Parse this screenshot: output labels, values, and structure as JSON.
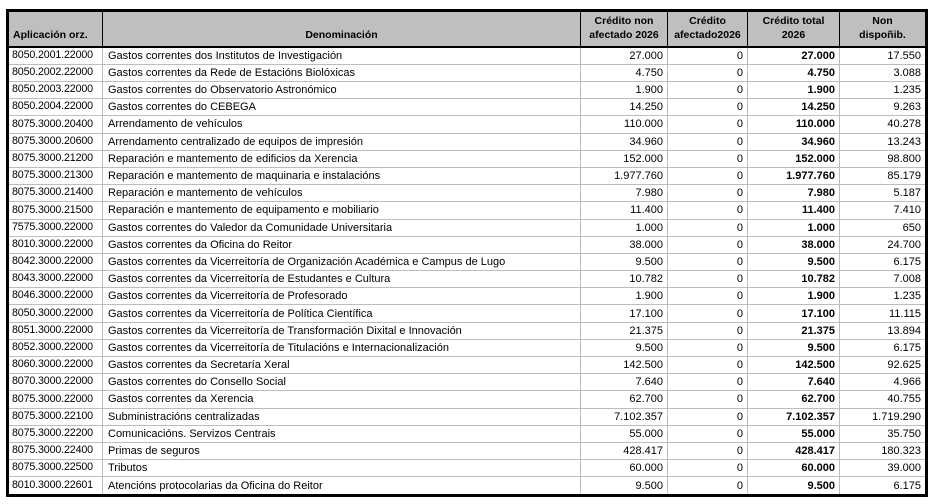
{
  "table": {
    "headers": [
      "Aplicación orz.",
      "Denominación",
      "Crédito non\nafectado 2026",
      "Crédito\nafectado2026",
      "Crédito total\n2026",
      "Non\ndispoñib."
    ],
    "rows": [
      [
        "8050.2001.22000",
        "Gastos correntes dos Institutos de Investigación",
        "27.000",
        "0",
        "27.000",
        "17.550"
      ],
      [
        "8050.2002.22000",
        "Gastos correntes da Rede de Estacións Biolóxicas",
        "4.750",
        "0",
        "4.750",
        "3.088"
      ],
      [
        "8050.2003.22000",
        "Gastos correntes do Observatorio Astronómico",
        "1.900",
        "0",
        "1.900",
        "1.235"
      ],
      [
        "8050.2004.22000",
        "Gastos correntes do CEBEGA",
        "14.250",
        "0",
        "14.250",
        "9.263"
      ],
      [
        "8075.3000.20400",
        "Arrendamento de vehículos",
        "110.000",
        "0",
        "110.000",
        "40.278"
      ],
      [
        "8075.3000.20600",
        "Arrendamento centralizado de equipos de impresión",
        "34.960",
        "0",
        "34.960",
        "13.243"
      ],
      [
        "8075.3000.21200",
        "Reparación e mantemento de edificios da Xerencia",
        "152.000",
        "0",
        "152.000",
        "98.800"
      ],
      [
        "8075.3000.21300",
        "Reparación e mantemento de maquinaria e instalacións",
        "1.977.760",
        "0",
        "1.977.760",
        "85.179"
      ],
      [
        "8075.3000.21400",
        "Reparación e mantemento de vehículos",
        "7.980",
        "0",
        "7.980",
        "5.187"
      ],
      [
        "8075.3000.21500",
        "Reparación e mantemento de equipamento e mobiliario",
        "11.400",
        "0",
        "11.400",
        "7.410"
      ],
      [
        "7575.3000.22000",
        "Gastos correntes do Valedor da Comunidade Universitaria",
        "1.000",
        "0",
        "1.000",
        "650"
      ],
      [
        "8010.3000.22000",
        "Gastos correntes da Oficina do Reitor",
        "38.000",
        "0",
        "38.000",
        "24.700"
      ],
      [
        "8042.3000.22000",
        "Gastos correntes da Vicerreitoría de Organización Académica e Campus de Lugo",
        "9.500",
        "0",
        "9.500",
        "6.175"
      ],
      [
        "8043.3000.22000",
        "Gastos correntes da Vicerreitoría de Estudantes e Cultura",
        "10.782",
        "0",
        "10.782",
        "7.008"
      ],
      [
        "8046.3000.22000",
        "Gastos correntes da Vicerreitoría de Profesorado",
        "1.900",
        "0",
        "1.900",
        "1.235"
      ],
      [
        "8050.3000.22000",
        "Gastos correntes da Vicerreitoría de Política Científica",
        "17.100",
        "0",
        "17.100",
        "11.115"
      ],
      [
        "8051.3000.22000",
        "Gastos correntes da Vicerreitoría de Transformación Dixital e Innovación",
        "21.375",
        "0",
        "21.375",
        "13.894"
      ],
      [
        "8052.3000.22000",
        "Gastos correntes da Vicerreitoría de Titulacións e Internacionalización",
        "9.500",
        "0",
        "9.500",
        "6.175"
      ],
      [
        "8060.3000.22000",
        "Gastos correntes da Secretaría Xeral",
        "142.500",
        "0",
        "142.500",
        "92.625"
      ],
      [
        "8070.3000.22000",
        "Gastos correntes do Consello Social",
        "7.640",
        "0",
        "7.640",
        "4.966"
      ],
      [
        "8075.3000.22000",
        "Gastos correntes da Xerencia",
        "62.700",
        "0",
        "62.700",
        "40.755"
      ],
      [
        "8075.3000.22100",
        "Subministracións centralizadas",
        "7.102.357",
        "0",
        "7.102.357",
        "1.719.290"
      ],
      [
        "8075.3000.22200",
        "Comunicacións. Servizos Centrais",
        "55.000",
        "0",
        "55.000",
        "35.750"
      ],
      [
        "8075.3000.22400",
        "Primas de seguros",
        "428.417",
        "0",
        "428.417",
        "180.323"
      ],
      [
        "8075.3000.22500",
        "Tributos",
        "60.000",
        "0",
        "60.000",
        "39.000"
      ],
      [
        "8010.3000.22601",
        "Atencións protocolarias da Oficina do Reitor",
        "9.500",
        "0",
        "9.500",
        "6.175"
      ]
    ]
  },
  "colors": {
    "header_bg": "#bfbfbf",
    "grid_line": "#bdbdbd",
    "outer_border": "#000000",
    "text": "#000000"
  }
}
